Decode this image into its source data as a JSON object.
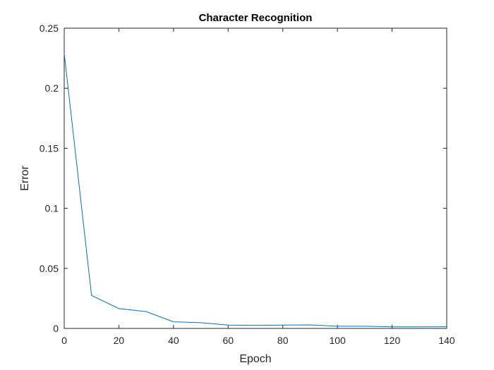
{
  "chart_data": {
    "type": "line",
    "title": "Character Recognition",
    "xlabel": "Epoch",
    "ylabel": "Error",
    "xlim": [
      0,
      140
    ],
    "ylim": [
      0,
      0.25
    ],
    "xticks": [
      0,
      20,
      40,
      60,
      80,
      100,
      120,
      140
    ],
    "yticks": [
      0,
      0.05,
      0.1,
      0.15,
      0.2,
      0.25
    ],
    "xtick_labels": [
      "0",
      "20",
      "40",
      "60",
      "80",
      "100",
      "120",
      "140"
    ],
    "ytick_labels": [
      "0",
      "0.05",
      "0.1",
      "0.15",
      "0.2",
      "0.25"
    ],
    "grid": false,
    "series": [
      {
        "color": "#0072BD",
        "x": [
          0,
          10,
          20,
          30,
          40,
          50,
          60,
          70,
          80,
          90,
          100,
          110,
          120,
          130,
          140
        ],
        "y": [
          0.229,
          0.0275,
          0.0165,
          0.014,
          0.0055,
          0.0048,
          0.0028,
          0.0025,
          0.0028,
          0.0029,
          0.0018,
          0.0018,
          0.0013,
          0.0013,
          0.0014
        ]
      }
    ]
  }
}
